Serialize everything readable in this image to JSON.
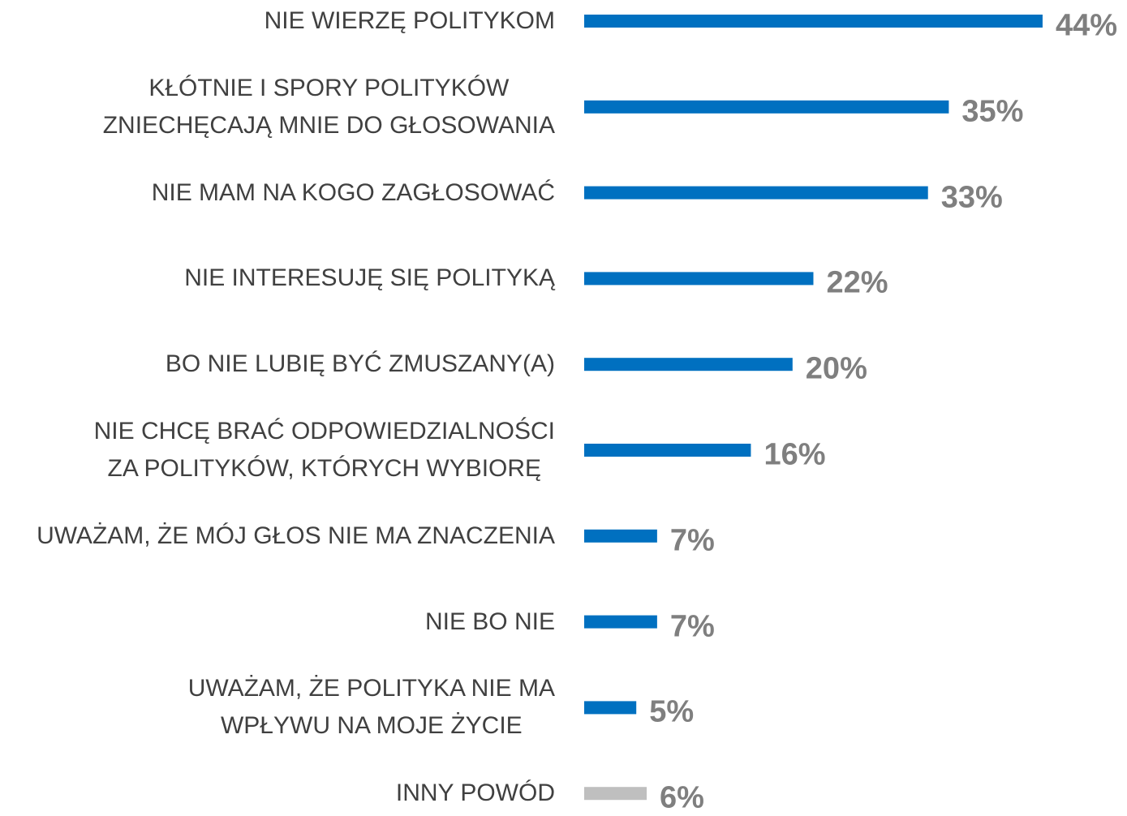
{
  "chart_data": {
    "type": "bar",
    "orientation": "horizontal",
    "categories": [
      "NIE WIERZĘ POLITYKOM",
      "KŁÓTNIE I SPORY POLITYKÓW\nZNIECHĘCAJĄ MNIE DO GŁOSOWANIA",
      "NIE MAM NA KOGO ZAGŁOSOWAĆ",
      "NIE INTERESUJĘ SIĘ POLITYKĄ",
      "BO NIE LUBIĘ BYĆ ZMUSZANY(A)",
      "NIE CHCĘ BRAĆ ODPOWIEDZIALNOŚCI\nZA POLITYKÓW, KTÓRYCH WYBIORĘ",
      "UWAŻAM, ŻE MÓJ GŁOS NIE MA ZNACZENIA",
      "NIE BO NIE",
      "UWAŻAM, ŻE POLITYKA NIE MA\nWPŁYWU NA MOJE ŻYCIE",
      "INNY POWÓD"
    ],
    "values": [
      44,
      35,
      33,
      22,
      20,
      16,
      7,
      7,
      5,
      6
    ],
    "value_labels": [
      "44%",
      "35%",
      "33%",
      "22%",
      "20%",
      "16%",
      "7%",
      "7%",
      "5%",
      "6%"
    ],
    "colors": [
      "#0070c0",
      "#0070c0",
      "#0070c0",
      "#0070c0",
      "#0070c0",
      "#0070c0",
      "#0070c0",
      "#0070c0",
      "#0070c0",
      "#bfbfbf"
    ]
  }
}
